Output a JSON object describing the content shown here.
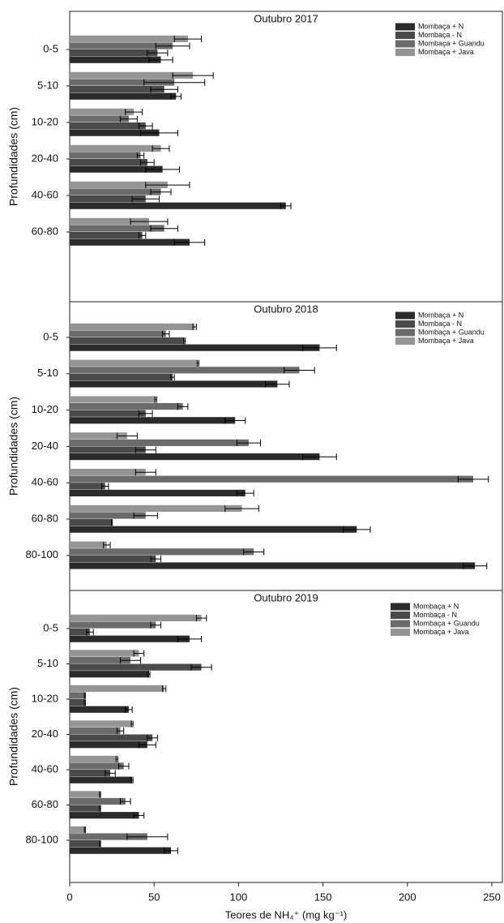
{
  "chart_data": [
    {
      "type": "hbar",
      "title": "Outubro 2017",
      "ylabel": "Profundidades (cm)",
      "categories": [
        "0-5",
        "5-10",
        "10-20",
        "20-40",
        "40-60",
        "60-80"
      ],
      "xlim": [
        0,
        250
      ],
      "series": [
        {
          "name": "Mombaça + N",
          "color": "#2b2b2b",
          "values": [
            54,
            63,
            53,
            55,
            128,
            71
          ],
          "errors": [
            7,
            3,
            11,
            10,
            3,
            9
          ]
        },
        {
          "name": "Mombaça - N",
          "color": "#4a4a4a",
          "values": [
            52,
            56,
            45,
            46,
            45,
            43
          ],
          "errors": [
            6,
            8,
            4,
            4,
            8,
            2
          ]
        },
        {
          "name": "Mombaça + Guandu",
          "color": "#6b6b6b",
          "values": [
            61,
            62,
            35,
            42,
            54,
            56
          ],
          "errors": [
            10,
            18,
            5,
            2,
            6,
            8
          ]
        },
        {
          "name": "Mombaça + Java",
          "color": "#959595",
          "values": [
            70,
            73,
            38,
            54,
            58,
            47
          ],
          "errors": [
            8,
            12,
            5,
            5,
            13,
            11
          ]
        }
      ]
    },
    {
      "type": "hbar",
      "title": "Outubro 2018",
      "ylabel": "Profundidades (cm)",
      "categories": [
        "0-5",
        "5-10",
        "10-20",
        "20-40",
        "40-60",
        "60-80",
        "80-100"
      ],
      "xlim": [
        0,
        250
      ],
      "series": [
        {
          "name": "Mombaça + N",
          "color": "#2b2b2b",
          "values": [
            148,
            123,
            98,
            148,
            104,
            170,
            240
          ],
          "errors": [
            10,
            7,
            6,
            10,
            5,
            8,
            7
          ]
        },
        {
          "name": "Mombaça - N",
          "color": "#4a4a4a",
          "values": [
            68,
            61,
            45,
            45,
            21,
            25,
            51
          ],
          "errors": [
            0.5,
            1,
            4,
            6,
            2,
            0.3,
            3
          ]
        },
        {
          "name": "Mombaça + Guandu",
          "color": "#6b6b6b",
          "values": [
            57,
            136,
            67,
            106,
            239,
            45,
            109
          ],
          "errors": [
            2,
            9,
            3,
            7,
            9,
            7,
            6
          ]
        },
        {
          "name": "Mombaça + Java",
          "color": "#959595",
          "values": [
            74,
            76,
            51,
            34,
            45,
            102,
            22
          ],
          "errors": [
            1,
            0.5,
            0.5,
            6,
            6,
            10,
            2
          ]
        }
      ]
    },
    {
      "type": "hbar",
      "title": "Outubro 2019",
      "ylabel": "Profundidades (cm)",
      "categories": [
        "0-5",
        "5-10",
        "10-20",
        "20-40",
        "40-60",
        "60-80",
        "80-100"
      ],
      "xlim": [
        0,
        250
      ],
      "xticks": [
        0,
        50,
        100,
        150,
        200,
        250
      ],
      "xlabel": "Teores de NH₄⁺ (mg kg⁻¹)",
      "series": [
        {
          "name": "Mombaça + N",
          "color": "#2b2b2b",
          "values": [
            71,
            47,
            35,
            46,
            37,
            41,
            60
          ],
          "errors": [
            7,
            0.5,
            2,
            5,
            0.5,
            3,
            4
          ]
        },
        {
          "name": "Mombaça - N",
          "color": "#4a4a4a",
          "values": [
            12,
            78,
            9,
            49,
            24,
            18,
            18
          ],
          "errors": [
            2,
            6,
            0.3,
            3,
            3,
            0.3,
            0.3
          ]
        },
        {
          "name": "Mombaça + Guandu",
          "color": "#6b6b6b",
          "values": [
            51,
            36,
            9,
            30,
            32,
            33,
            46
          ],
          "errors": [
            3,
            6,
            0.3,
            2,
            3,
            3,
            12
          ]
        },
        {
          "name": "Mombaça + Java",
          "color": "#959595",
          "values": [
            78,
            41,
            56,
            37,
            28,
            18,
            9
          ],
          "errors": [
            3,
            3,
            1,
            0.5,
            0.5,
            0.3,
            0.3
          ]
        }
      ]
    }
  ]
}
